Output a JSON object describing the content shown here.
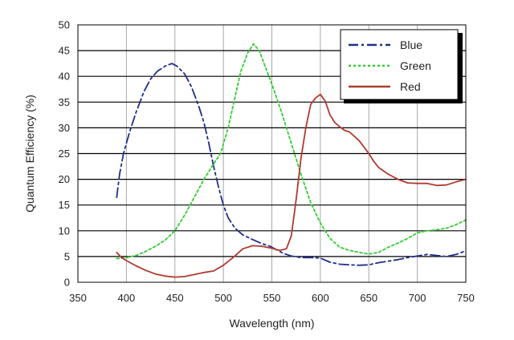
{
  "chart_data": {
    "type": "line",
    "title": "",
    "xlabel": "Wavelength (nm)",
    "ylabel": "Quantum Efficiency (%)",
    "xlim": [
      350,
      750
    ],
    "ylim": [
      0,
      50
    ],
    "xticks": [
      350,
      400,
      450,
      500,
      550,
      600,
      650,
      700,
      750
    ],
    "yticks": [
      0,
      5,
      10,
      15,
      20,
      25,
      30,
      35,
      40,
      45,
      50
    ],
    "grid": true,
    "legend": "top-right",
    "series": [
      {
        "name": "Blue",
        "color": "#1f2f8a",
        "dash": "dash-dot",
        "points": [
          [
            390,
            16.5
          ],
          [
            393,
            21
          ],
          [
            397,
            25
          ],
          [
            403,
            29
          ],
          [
            410,
            33
          ],
          [
            418,
            37
          ],
          [
            425,
            39.5
          ],
          [
            432,
            41
          ],
          [
            440,
            42
          ],
          [
            447,
            42.5
          ],
          [
            452,
            42
          ],
          [
            460,
            40.5
          ],
          [
            467,
            38
          ],
          [
            475,
            34
          ],
          [
            480,
            31
          ],
          [
            485,
            27
          ],
          [
            490,
            22.5
          ],
          [
            495,
            18.5
          ],
          [
            500,
            15
          ],
          [
            505,
            12.5
          ],
          [
            512,
            10.5
          ],
          [
            520,
            9.2
          ],
          [
            530,
            8.3
          ],
          [
            540,
            7.5
          ],
          [
            548,
            7
          ],
          [
            555,
            6.3
          ],
          [
            562,
            5.6
          ],
          [
            570,
            5.1
          ],
          [
            580,
            4.8
          ],
          [
            590,
            4.8
          ],
          [
            600,
            4.7
          ],
          [
            610,
            3.9
          ],
          [
            620,
            3.5
          ],
          [
            630,
            3.4
          ],
          [
            640,
            3.3
          ],
          [
            650,
            3.4
          ],
          [
            660,
            3.8
          ],
          [
            670,
            4.1
          ],
          [
            680,
            4.4
          ],
          [
            690,
            4.8
          ],
          [
            700,
            5.1
          ],
          [
            710,
            5.4
          ],
          [
            720,
            5.2
          ],
          [
            730,
            5
          ],
          [
            740,
            5.4
          ],
          [
            750,
            6.1
          ]
        ]
      },
      {
        "name": "Green",
        "color": "#33cc33",
        "dash": "dotted",
        "points": [
          [
            390,
            4.6
          ],
          [
            400,
            4.8
          ],
          [
            410,
            5.2
          ],
          [
            420,
            6
          ],
          [
            430,
            7
          ],
          [
            440,
            8.2
          ],
          [
            450,
            10
          ],
          [
            460,
            13
          ],
          [
            470,
            16.5
          ],
          [
            480,
            20
          ],
          [
            490,
            23
          ],
          [
            497,
            25
          ],
          [
            505,
            30
          ],
          [
            512,
            36
          ],
          [
            518,
            41
          ],
          [
            525,
            44.5
          ],
          [
            531,
            46.3
          ],
          [
            537,
            45
          ],
          [
            543,
            42
          ],
          [
            550,
            38.5
          ],
          [
            560,
            33
          ],
          [
            570,
            27
          ],
          [
            580,
            21
          ],
          [
            590,
            15.5
          ],
          [
            600,
            11.5
          ],
          [
            610,
            8.5
          ],
          [
            620,
            6.8
          ],
          [
            630,
            6.2
          ],
          [
            640,
            5.8
          ],
          [
            650,
            5.5
          ],
          [
            660,
            5.8
          ],
          [
            670,
            6.8
          ],
          [
            680,
            7.6
          ],
          [
            690,
            8.5
          ],
          [
            700,
            9.6
          ],
          [
            710,
            10
          ],
          [
            720,
            10.2
          ],
          [
            730,
            10.5
          ],
          [
            740,
            11.2
          ],
          [
            750,
            12.1
          ]
        ]
      },
      {
        "name": "Red",
        "color": "#b03a2e",
        "dash": "solid",
        "points": [
          [
            390,
            5.8
          ],
          [
            395,
            4.8
          ],
          [
            400,
            4.2
          ],
          [
            410,
            3.2
          ],
          [
            420,
            2.3
          ],
          [
            430,
            1.6
          ],
          [
            440,
            1.2
          ],
          [
            450,
            1
          ],
          [
            460,
            1.1
          ],
          [
            470,
            1.5
          ],
          [
            480,
            1.9
          ],
          [
            490,
            2.2
          ],
          [
            500,
            3.3
          ],
          [
            510,
            4.8
          ],
          [
            520,
            6.5
          ],
          [
            530,
            7.1
          ],
          [
            540,
            7
          ],
          [
            550,
            6.6
          ],
          [
            558,
            6.2
          ],
          [
            565,
            6.5
          ],
          [
            570,
            9
          ],
          [
            575,
            16
          ],
          [
            580,
            24
          ],
          [
            585,
            30
          ],
          [
            590,
            34.5
          ],
          [
            595,
            35.8
          ],
          [
            600,
            36.5
          ],
          [
            605,
            35.2
          ],
          [
            610,
            32.5
          ],
          [
            615,
            31
          ],
          [
            620,
            30.2
          ],
          [
            625,
            29.5
          ],
          [
            630,
            29.2
          ],
          [
            640,
            27.5
          ],
          [
            650,
            25
          ],
          [
            655,
            23.5
          ],
          [
            660,
            22.3
          ],
          [
            670,
            21
          ],
          [
            680,
            20
          ],
          [
            690,
            19.3
          ],
          [
            700,
            19.2
          ],
          [
            710,
            19.2
          ],
          [
            720,
            18.8
          ],
          [
            730,
            18.9
          ],
          [
            740,
            19.5
          ],
          [
            750,
            20
          ]
        ]
      }
    ]
  }
}
